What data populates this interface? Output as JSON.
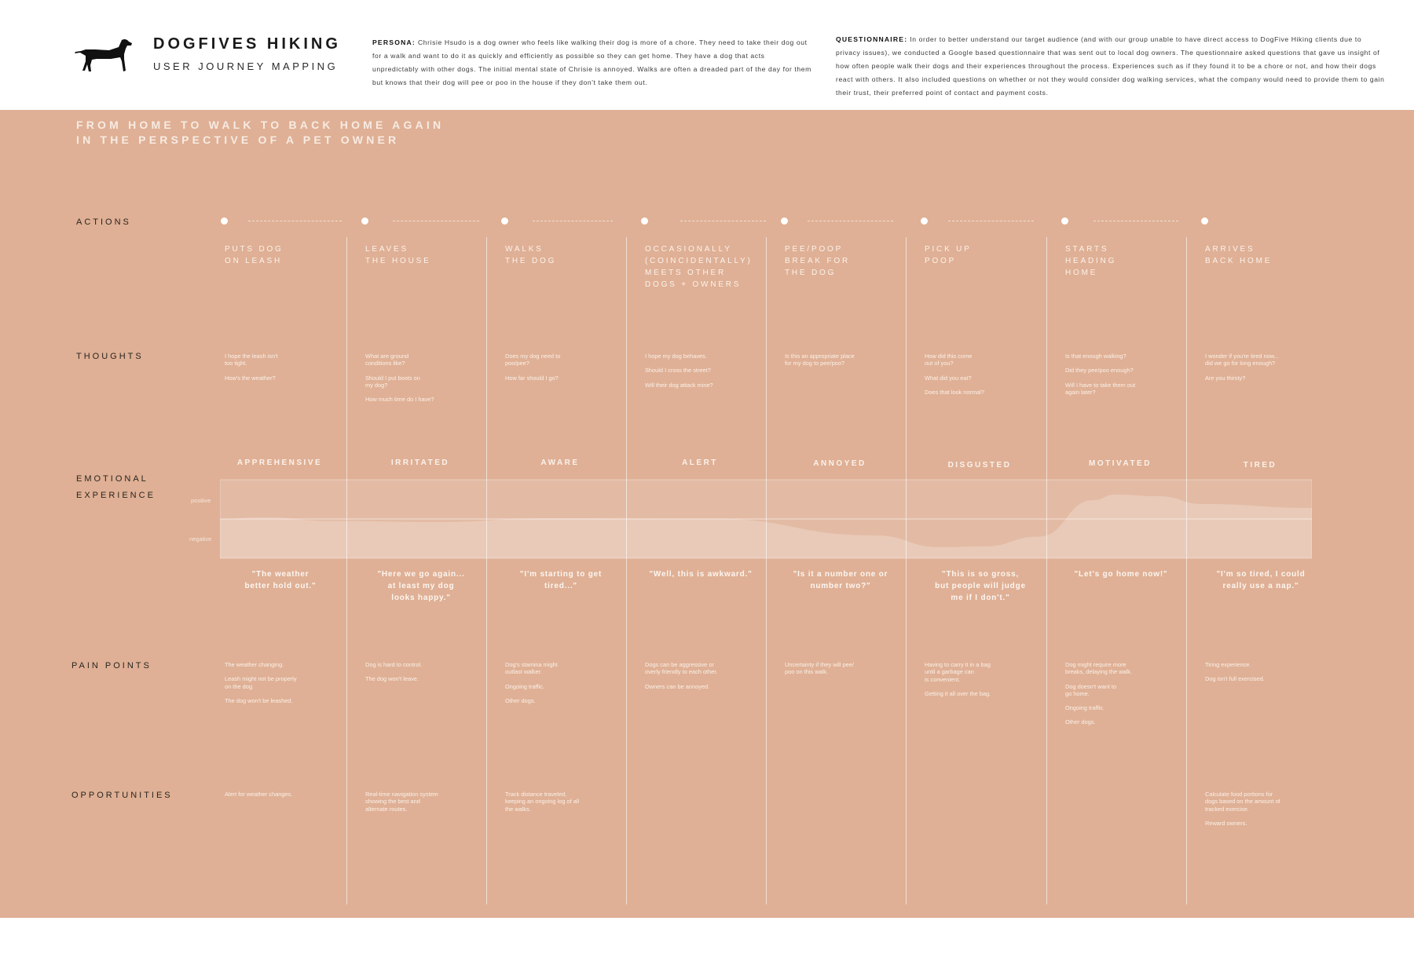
{
  "brand": {
    "title": "DOGFIVES HIKING",
    "subtitle": "USER JOURNEY MAPPING"
  },
  "persona": {
    "label": "PERSONA:",
    "text": "Chrisie Hsudo is a dog owner who feels like walking their dog is more of a chore. They need to take their dog out for a walk and want to do it as quickly and efficiently as possible so they can get home. They have a dog that acts unpredictably with other dogs. The initial mental state of Chrisie is annoyed. Walks are often a dreaded part of the day for them but knows that their dog will pee or poo in the house if they don't take them out."
  },
  "questionnaire": {
    "label": "QUESTIONNAIRE:",
    "text": "In order to better understand our target audience (and with our group unable to have direct access to DogFive Hiking clients due to privacy issues), we conducted a Google based questionnaire that was sent out to local dog owners. The questionnaire asked questions that gave us insight of how often people walk their dogs and their experiences throughout the process. Experiences such as if they found it to be a chore or not, and how their dogs react with others. It also included questions on whether or not they would consider dog walking services, what the company would need to provide them to gain their trust, their preferred point of contact and payment costs."
  },
  "board": {
    "title_line1": "FROM HOME TO WALK TO BACK HOME AGAIN",
    "title_line2": "IN THE PERSPECTIVE OF A PET OWNER"
  },
  "row_labels": {
    "actions": "ACTIONS",
    "thoughts": "THOUGHTS",
    "emotional_1": "EMOTIONAL",
    "emotional_2": "EXPERIENCE",
    "pain_points": "PAIN POINTS",
    "opportunities": "OPPORTUNITIES"
  },
  "chart_labels": {
    "positive": "positive",
    "negative": "negative"
  },
  "chart_data": {
    "type": "area",
    "categories": [
      "Puts dog on leash",
      "Leaves the house",
      "Walks the dog",
      "Occasionally meets other dogs + owners",
      "Pee/poop break for the dog",
      "Pick up poop",
      "Starts heading home",
      "Arrives back home"
    ],
    "x": [
      0,
      0.04,
      0.1,
      0.2,
      0.3,
      0.45,
      0.6,
      0.66,
      0.7,
      0.75,
      0.8,
      0.82,
      0.86,
      0.9,
      1.0
    ],
    "values": [
      0,
      0.04,
      -0.05,
      -0.08,
      0.02,
      0.01,
      -0.42,
      -0.72,
      -0.7,
      -0.45,
      0.48,
      0.62,
      0.58,
      0.38,
      0.28
    ],
    "ylim": [
      -1,
      1
    ]
  },
  "stages": [
    {
      "action": "PUTS DOG\nON LEASH",
      "thoughts": [
        "I hope the leash isn't\ntoo tight.",
        "How's the weather?"
      ],
      "emotion": "APPREHENSIVE",
      "quote": "\"The weather\nbetter hold out.\"",
      "pain_points": [
        "The weather changing.",
        "Leash might not be properly\non the dog.",
        "The dog won't be leashed."
      ],
      "opportunities": [
        "Alert for weather changes."
      ]
    },
    {
      "action": "LEAVES\nTHE HOUSE",
      "thoughts": [
        "What are ground\nconditions like?",
        "Should I put boots on\nmy dog?",
        "How much time do I have?"
      ],
      "emotion": "IRRITATED",
      "quote": "\"Here we go again...\nat least my dog\nlooks happy.\"",
      "pain_points": [
        "Dog is hard to control.",
        "The dog won't leave."
      ],
      "opportunities": [
        "Real-time navigation system\nshowing the best and\nalternate routes."
      ]
    },
    {
      "action": "WALKS\nTHE DOG",
      "thoughts": [
        "Does my dog need to\npoo/pee?",
        "How far should I go?"
      ],
      "emotion": "AWARE",
      "quote": "\"I'm starting to get\ntired...\"",
      "pain_points": [
        "Dog's stamina might\noutlast walker.",
        "Ongoing traffic.",
        "Other dogs."
      ],
      "opportunities": [
        "Track distance traveled,\nkeeping an ongoing log of all\nthe walks."
      ]
    },
    {
      "action": "OCCASIONALLY\n(COINCIDENTALLY)\nMEETS OTHER\nDOGS + OWNERS",
      "thoughts": [
        "I hope my dog behaves.",
        "Should I cross the street?",
        "Will their dog attack mine?"
      ],
      "emotion": "ALERT",
      "quote": "\"Well, this is awkward.\"",
      "pain_points": [
        "Dogs can be aggressive or\noverly friendly to each other.",
        "Owners can be annoyed."
      ],
      "opportunities": []
    },
    {
      "action": "PEE/POOP\nBREAK FOR\nTHE DOG",
      "thoughts": [
        "Is this an appropriate place\nfor my dog to pee/poo?"
      ],
      "emotion": "ANNOYED",
      "quote": "\"Is it a number one or\nnumber two?\"",
      "pain_points": [
        "Uncertainty if they will pee/\npoo on this walk."
      ],
      "opportunities": []
    },
    {
      "action": "PICK UP\nPOOP",
      "thoughts": [
        "How did this come\nout of you?",
        "What did you eat?",
        "Does that look normal?"
      ],
      "emotion": "DISGUSTED",
      "quote": "\"This is so gross,\nbut people will judge\nme if I don't.\"",
      "pain_points": [
        "Having to carry it in a bag\nuntil a garbage can\nis convenient.",
        "Getting it all over the bag."
      ],
      "opportunities": []
    },
    {
      "action": "STARTS\nHEADING\nHOME",
      "thoughts": [
        "Is that enough walking?",
        "Did they pee/poo enough?",
        "Will I have to take them out\nagain later?"
      ],
      "emotion": "MOTIVATED",
      "quote": "\"Let's go home now!\"",
      "pain_points": [
        "Dog might require more\nbreaks, delaying the walk.",
        "Dog doesn't want to\ngo home.",
        "Ongoing traffic.",
        "Other dogs."
      ],
      "opportunities": []
    },
    {
      "action": "ARRIVES\nBACK HOME",
      "thoughts": [
        "I wonder if you're tired now...\ndid we go for long enough?",
        "Are you thirsty?"
      ],
      "emotion": "TIRED",
      "quote": "\"I'm so tired, I could\nreally use a nap.\"",
      "pain_points": [
        "Tiring experience.",
        "Dog isn't full exercised."
      ],
      "opportunities": [
        "Calculate food portions for\ndogs based on the amount of\ntracked exercise.",
        "Reward owners."
      ]
    }
  ]
}
